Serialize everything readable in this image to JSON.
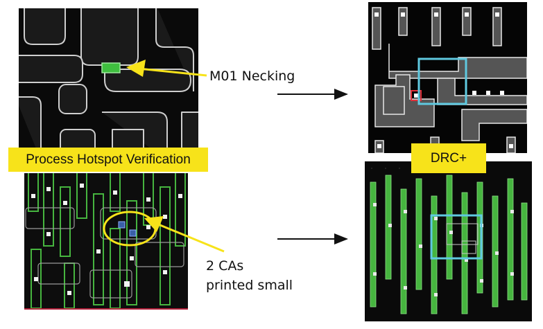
{
  "labels": {
    "necking": "M01 Necking",
    "hotspot": "Process Hotspot Verification",
    "drc": "DRC+",
    "cas_line1": "2 CAs",
    "cas_line2": "printed small"
  },
  "colors": {
    "highlight": "#f7e31a",
    "marker_green": "#3fbf3f",
    "drc_box": "#5fc9e0",
    "error_red": "#e0303a",
    "metal_green": "#46b53f"
  }
}
